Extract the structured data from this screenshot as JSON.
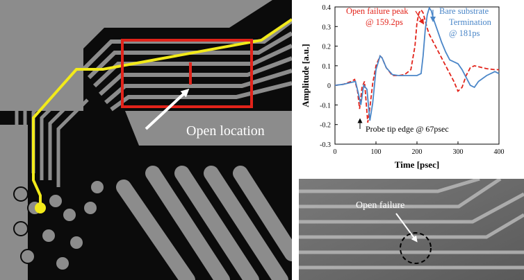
{
  "layout_panel": {
    "open_location_label": "Open location",
    "colors": {
      "substrate": "#0b0b0b",
      "metal": "#8c8c8c",
      "highlight_trace": "#f2ea1a",
      "box": "#e2231a",
      "arrow": "#ffffff"
    }
  },
  "tdr_panel": {
    "annotations": {
      "open_peak": [
        "Open failure peak",
        "@ 159.2ps"
      ],
      "bare": [
        "Bare substrate",
        "Termination",
        "@ 181ps"
      ],
      "probe": "Probe tip edge @ 67psec"
    },
    "colors": {
      "open_series": "#e2231a",
      "bare_series": "#4a86c8",
      "axis": "#000000"
    },
    "chart_data": {
      "type": "line",
      "xlabel": "Time [psec]",
      "ylabel": "Amplitude [a.u.]",
      "xlim": [
        0,
        400
      ],
      "ylim": [
        -0.3,
        0.4
      ],
      "xticks": [
        0,
        100,
        200,
        300,
        400
      ],
      "yticks": [
        -0.3,
        -0.2,
        -0.1,
        0,
        0.1,
        0.2,
        0.3,
        0.4
      ],
      "series": [
        {
          "style": "dashed",
          "color": "#e2231a",
          "x": [
            0,
            20,
            40,
            48,
            55,
            60,
            66,
            72,
            80,
            86,
            92,
            100,
            110,
            115,
            125,
            140,
            155,
            170,
            185,
            195,
            200,
            205,
            210,
            215,
            220,
            225,
            230,
            240,
            250,
            260,
            270,
            280,
            290,
            300,
            310,
            320,
            330,
            340,
            350,
            370,
            390,
            400
          ],
          "y": [
            0,
            0.005,
            0.02,
            0.03,
            -0.03,
            -0.12,
            -0.01,
            0.02,
            -0.19,
            -0.1,
            0.01,
            0.1,
            0.15,
            0.14,
            0.09,
            0.05,
            0.05,
            0.055,
            0.08,
            0.2,
            0.32,
            0.37,
            0.385,
            0.37,
            0.33,
            0.29,
            0.26,
            0.22,
            0.18,
            0.14,
            0.1,
            0.06,
            0.02,
            -0.03,
            -0.01,
            0.05,
            0.09,
            0.1,
            0.095,
            0.085,
            0.08,
            0.08
          ]
        },
        {
          "style": "solid",
          "color": "#4a86c8",
          "x": [
            0,
            20,
            40,
            50,
            57,
            63,
            70,
            78,
            85,
            92,
            100,
            110,
            115,
            125,
            140,
            155,
            170,
            185,
            200,
            210,
            215,
            220,
            225,
            230,
            235,
            240,
            250,
            260,
            270,
            280,
            290,
            300,
            310,
            320,
            330,
            340,
            350,
            370,
            390,
            400
          ],
          "y": [
            0,
            0.005,
            0.015,
            0.02,
            -0.04,
            -0.1,
            0.0,
            -0.02,
            -0.18,
            -0.09,
            0.08,
            0.15,
            0.14,
            0.09,
            0.055,
            0.05,
            0.05,
            0.05,
            0.05,
            0.06,
            0.15,
            0.28,
            0.36,
            0.395,
            0.38,
            0.34,
            0.28,
            0.22,
            0.17,
            0.13,
            0.12,
            0.11,
            0.08,
            0.04,
            0.0,
            -0.01,
            0.02,
            0.05,
            0.07,
            0.06
          ]
        }
      ]
    }
  },
  "micro_panel": {
    "open_failure_label": "Open failure"
  }
}
